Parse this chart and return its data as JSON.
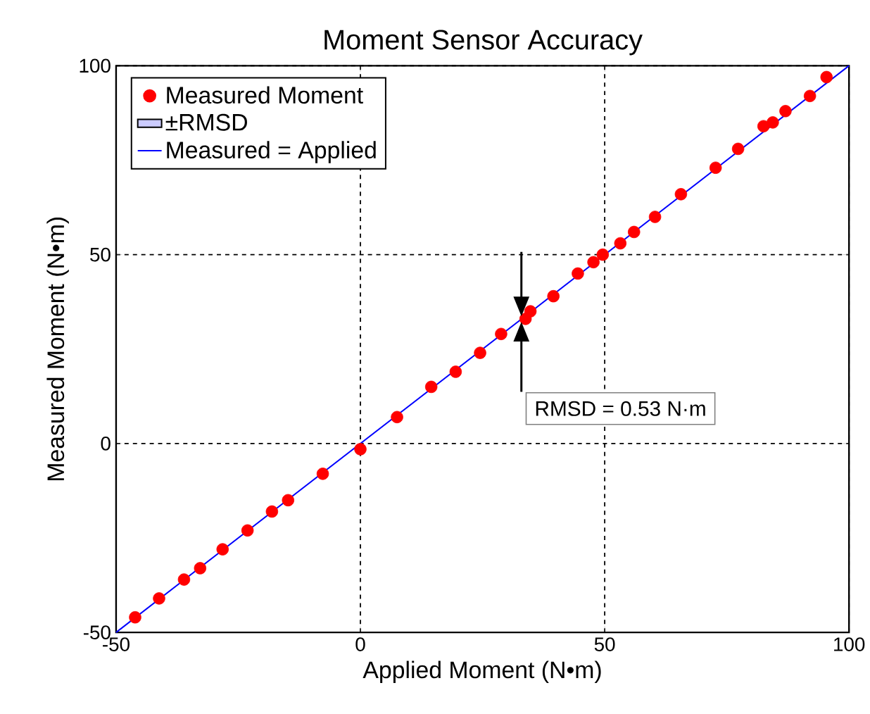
{
  "chart_data": {
    "type": "scatter",
    "title": "Moment Sensor Accuracy",
    "xlabel": "Applied Moment (N•m)",
    "ylabel": "Measured Moment (N•m)",
    "xlim": [
      -50,
      100
    ],
    "ylim": [
      -50,
      100
    ],
    "xticks": [
      -50,
      0,
      50,
      100
    ],
    "yticks": [
      -50,
      0,
      50,
      100
    ],
    "grid": true,
    "legend": "top left",
    "annotations": [
      "RMSD = 0.53 N·m"
    ],
    "series": [
      {
        "name": "Measured Moment",
        "color": "#ff0000",
        "marker": "circle",
        "x": [
          -46.1,
          -41.2,
          -36.1,
          -32.8,
          -28.2,
          -23.1,
          -18.1,
          -14.8,
          -7.7,
          0,
          7.5,
          14.5,
          19.5,
          24.5,
          28.8,
          33.8,
          34.8,
          39.5,
          44.5,
          47.7,
          49.6,
          53.2,
          56,
          60.3,
          65.6,
          72.7,
          77.3,
          82.5,
          84.4,
          87,
          92,
          95.4
        ],
        "values": [
          -46,
          -41,
          -36,
          -33,
          -28,
          -23,
          -18,
          -15,
          -8,
          -1.5,
          7,
          15,
          19,
          24,
          29,
          33,
          35,
          39,
          45,
          48,
          50,
          53,
          56,
          60,
          66,
          73,
          78,
          84,
          85,
          88,
          92,
          97
        ]
      },
      {
        "name": "±RMSD",
        "type": "area",
        "color": "#ccccff"
      },
      {
        "name": "Measured = Applied",
        "type": "line",
        "color": "#0000ff",
        "marker": "none",
        "line_style": "solid",
        "x": [
          -50,
          100
        ],
        "values": [
          -50,
          100
        ]
      }
    ]
  }
}
